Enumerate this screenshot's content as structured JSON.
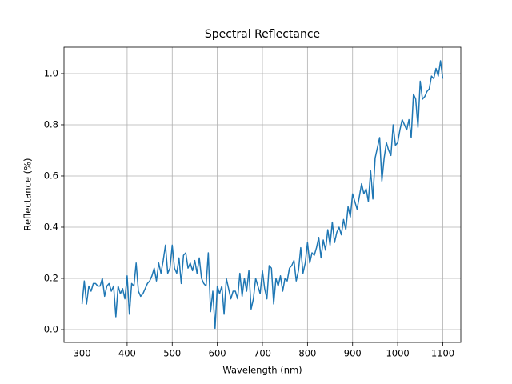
{
  "chart_data": {
    "type": "line",
    "title": "Spectral Reflectance",
    "x_label": "Wavelength (nm)",
    "y_label": "Reflectance (%)",
    "x": [
      300,
      305,
      310,
      315,
      320,
      325,
      330,
      335,
      340,
      345,
      350,
      355,
      360,
      365,
      370,
      375,
      380,
      385,
      390,
      395,
      400,
      405,
      410,
      415,
      420,
      425,
      430,
      435,
      440,
      445,
      450,
      455,
      460,
      465,
      470,
      475,
      480,
      485,
      490,
      495,
      500,
      505,
      510,
      515,
      520,
      525,
      530,
      535,
      540,
      545,
      550,
      555,
      560,
      565,
      570,
      575,
      580,
      585,
      590,
      595,
      600,
      605,
      610,
      615,
      620,
      625,
      630,
      635,
      640,
      645,
      650,
      655,
      660,
      665,
      670,
      675,
      680,
      685,
      690,
      695,
      700,
      705,
      710,
      715,
      720,
      725,
      730,
      735,
      740,
      745,
      750,
      755,
      760,
      765,
      770,
      775,
      780,
      785,
      790,
      795,
      800,
      805,
      810,
      815,
      820,
      825,
      830,
      835,
      840,
      845,
      850,
      855,
      860,
      865,
      870,
      875,
      880,
      885,
      890,
      895,
      900,
      905,
      910,
      915,
      920,
      925,
      930,
      935,
      940,
      945,
      950,
      955,
      960,
      965,
      970,
      975,
      980,
      985,
      990,
      995,
      1000,
      1005,
      1010,
      1015,
      1020,
      1025,
      1030,
      1035,
      1040,
      1045,
      1050,
      1055,
      1060,
      1065,
      1070,
      1075,
      1080,
      1085,
      1090,
      1095,
      1100
    ],
    "series": [
      {
        "name": "Reflectance",
        "color": "#1f77b4",
        "values": [
          0.1,
          0.19,
          0.1,
          0.17,
          0.15,
          0.18,
          0.18,
          0.17,
          0.17,
          0.2,
          0.13,
          0.17,
          0.18,
          0.15,
          0.17,
          0.05,
          0.17,
          0.14,
          0.16,
          0.12,
          0.21,
          0.06,
          0.18,
          0.17,
          0.26,
          0.15,
          0.13,
          0.14,
          0.16,
          0.18,
          0.19,
          0.21,
          0.24,
          0.19,
          0.26,
          0.22,
          0.27,
          0.33,
          0.22,
          0.24,
          0.33,
          0.24,
          0.22,
          0.28,
          0.18,
          0.29,
          0.3,
          0.24,
          0.26,
          0.23,
          0.27,
          0.22,
          0.28,
          0.2,
          0.18,
          0.17,
          0.3,
          0.07,
          0.15,
          0.005,
          0.17,
          0.14,
          0.17,
          0.06,
          0.2,
          0.16,
          0.12,
          0.15,
          0.15,
          0.12,
          0.22,
          0.13,
          0.2,
          0.15,
          0.23,
          0.08,
          0.12,
          0.2,
          0.17,
          0.14,
          0.23,
          0.16,
          0.12,
          0.25,
          0.24,
          0.1,
          0.2,
          0.17,
          0.21,
          0.15,
          0.2,
          0.19,
          0.24,
          0.25,
          0.27,
          0.19,
          0.23,
          0.32,
          0.22,
          0.26,
          0.34,
          0.26,
          0.3,
          0.29,
          0.32,
          0.36,
          0.28,
          0.35,
          0.31,
          0.39,
          0.33,
          0.42,
          0.34,
          0.38,
          0.4,
          0.37,
          0.43,
          0.39,
          0.48,
          0.44,
          0.53,
          0.5,
          0.47,
          0.52,
          0.57,
          0.53,
          0.55,
          0.5,
          0.62,
          0.51,
          0.67,
          0.71,
          0.75,
          0.58,
          0.67,
          0.73,
          0.7,
          0.68,
          0.8,
          0.72,
          0.73,
          0.78,
          0.82,
          0.8,
          0.78,
          0.82,
          0.75,
          0.92,
          0.9,
          0.79,
          0.97,
          0.9,
          0.91,
          0.93,
          0.94,
          0.99,
          0.98,
          1.02,
          0.99,
          1.05,
          0.98
        ]
      }
    ],
    "xlim": [
      260,
      1140
    ],
    "ylim": [
      -0.05,
      1.103
    ],
    "xticks": [
      300,
      400,
      500,
      600,
      700,
      800,
      900,
      1000,
      1100
    ],
    "yticks": [
      {
        "value": 0,
        "label": "0.0"
      },
      {
        "value": 0.2,
        "label": "0.2"
      },
      {
        "value": 0.4,
        "label": "0.4"
      },
      {
        "value": 0.6,
        "label": "0.6"
      },
      {
        "value": 0.8,
        "label": "0.8"
      },
      {
        "value": 1,
        "label": "1.0"
      }
    ],
    "grid": true
  }
}
